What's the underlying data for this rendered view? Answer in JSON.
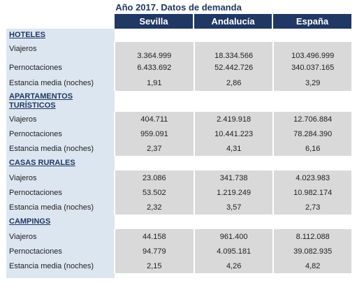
{
  "title": "Año 2017. Datos de demanda",
  "columns": [
    "Sevilla",
    "Andalucía",
    "España"
  ],
  "sections": [
    {
      "name": "HOTELES",
      "rows": [
        {
          "label": "Viajeros",
          "values": [
            "3.364.999",
            "18.334.566",
            "103.496.999"
          ]
        },
        {
          "label": "Pernoctaciones",
          "values": [
            "6.433.692",
            "52.442.726",
            "340.037.165"
          ]
        },
        {
          "label": "Estancia media (noches)",
          "values": [
            "1,91",
            "2,86",
            "3,29"
          ]
        }
      ]
    },
    {
      "name": "APARTAMENTOS TURÍSTICOS",
      "rows": [
        {
          "label": "Viajeros",
          "values": [
            "404.711",
            "2.419.918",
            "12.706.884"
          ]
        },
        {
          "label": "Pernoctaciones",
          "values": [
            "959.091",
            "10.441.223",
            "78.284.390"
          ]
        },
        {
          "label": "Estancia media (noches)",
          "values": [
            "2,37",
            "4,31",
            "6,16"
          ]
        }
      ]
    },
    {
      "name": "CASAS RURALES",
      "rows": [
        {
          "label": "Viajeros",
          "values": [
            "23.086",
            "341.738",
            "4.023.983"
          ]
        },
        {
          "label": "Pernoctaciones",
          "values": [
            "53.502",
            "1.219.249",
            "10.982.174"
          ]
        },
        {
          "label": "Estancia media (noches)",
          "values": [
            "2,32",
            "3,57",
            "2,73"
          ]
        }
      ]
    },
    {
      "name": "CAMPINGS",
      "rows": [
        {
          "label": "Viajeros",
          "values": [
            "44.158",
            "961.400",
            "8.112.088"
          ]
        },
        {
          "label": "Pernoctaciones",
          "values": [
            "94.779",
            "4.095.181",
            "39.082.935"
          ]
        },
        {
          "label": "Estancia media (noches)",
          "values": [
            "2,15",
            "4,26",
            "4,82"
          ]
        }
      ]
    }
  ]
}
